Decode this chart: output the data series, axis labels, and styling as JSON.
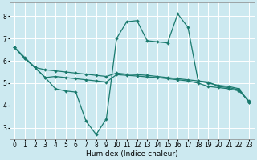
{
  "xlabel": "Humidex (Indice chaleur)",
  "bg_color": "#cce9f0",
  "grid_color": "#ffffff",
  "line_color": "#1a7a6e",
  "xlim": [
    -0.5,
    23.5
  ],
  "ylim": [
    2.5,
    8.6
  ],
  "xticks": [
    0,
    1,
    2,
    3,
    4,
    5,
    6,
    7,
    8,
    9,
    10,
    11,
    12,
    13,
    14,
    15,
    16,
    17,
    18,
    19,
    20,
    21,
    22,
    23
  ],
  "yticks": [
    3,
    4,
    5,
    6,
    7,
    8
  ],
  "line1_x": [
    0,
    1,
    2,
    3,
    4,
    5,
    6,
    7,
    8,
    9,
    10,
    11,
    12,
    13,
    14,
    15,
    16,
    17,
    18,
    19,
    20,
    21,
    22,
    23
  ],
  "line1_y": [
    6.6,
    6.15,
    5.7,
    5.25,
    4.75,
    4.65,
    4.6,
    3.3,
    2.7,
    3.4,
    7.0,
    7.75,
    7.8,
    6.9,
    6.85,
    6.8,
    8.1,
    7.5,
    5.1,
    5.05,
    4.85,
    4.8,
    4.7,
    4.15
  ],
  "line2_x": [
    0,
    1,
    2,
    3,
    4,
    5,
    6,
    7,
    8,
    9,
    10,
    11,
    12,
    13,
    14,
    15,
    16,
    17,
    18,
    19,
    20,
    21,
    22,
    23
  ],
  "line2_y": [
    6.6,
    6.1,
    5.7,
    5.6,
    5.55,
    5.5,
    5.45,
    5.4,
    5.35,
    5.3,
    5.45,
    5.4,
    5.38,
    5.35,
    5.3,
    5.25,
    5.2,
    5.15,
    5.1,
    5.0,
    4.9,
    4.85,
    4.75,
    4.15
  ],
  "line3_x": [
    0,
    1,
    2,
    3,
    4,
    5,
    6,
    7,
    8,
    9,
    10,
    11,
    12,
    13,
    14,
    15,
    16,
    17,
    18,
    19,
    20,
    21,
    22,
    23
  ],
  "line3_y": [
    6.6,
    6.1,
    5.7,
    5.25,
    5.3,
    5.25,
    5.2,
    5.15,
    5.1,
    5.05,
    5.38,
    5.35,
    5.32,
    5.28,
    5.25,
    5.2,
    5.15,
    5.1,
    5.0,
    4.85,
    4.8,
    4.75,
    4.65,
    4.2
  ]
}
